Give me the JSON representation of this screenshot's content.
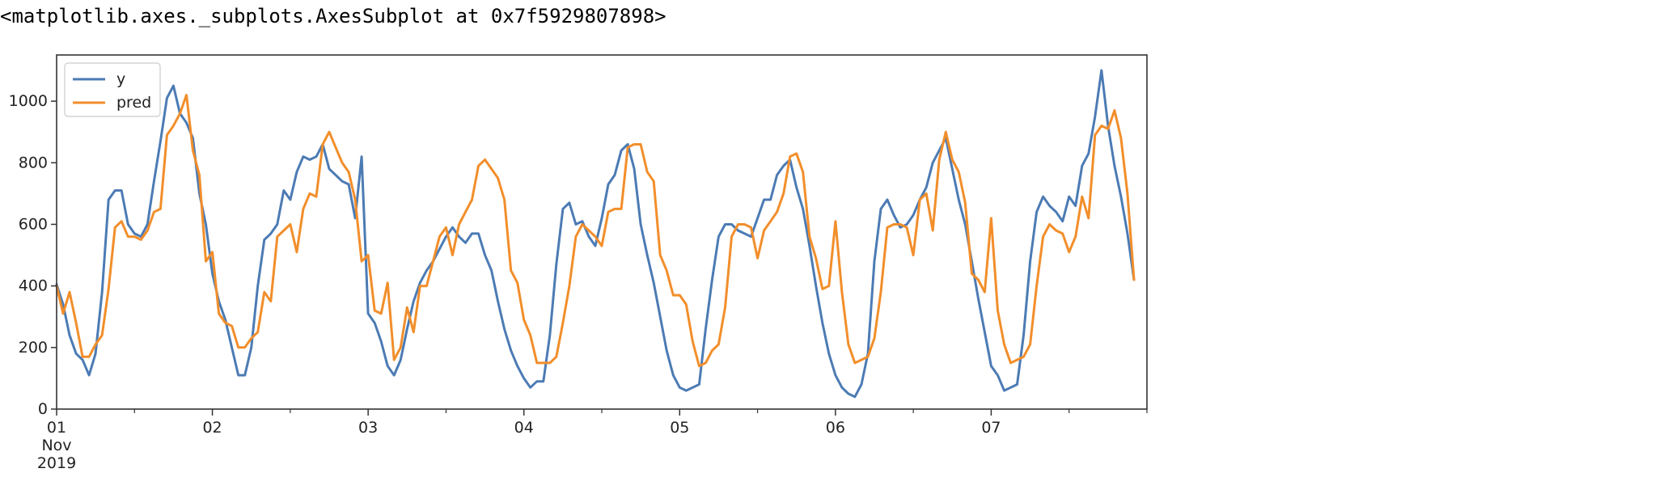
{
  "output_repr": "<matplotlib.axes._subplots.AxesSubplot at 0x7f5929807898>",
  "chart_data": {
    "type": "line",
    "title": "",
    "xlabel": "",
    "ylabel": "",
    "grid": false,
    "legend_position": "top-left",
    "x_start": "2019-11-01 00:00",
    "x_step": "1 hour",
    "xlim": [
      "2019-11-01 00:00",
      "2019-11-08 00:00"
    ],
    "ylim": [
      0,
      1150
    ],
    "y_ticks": [
      0,
      200,
      400,
      600,
      800,
      1000
    ],
    "x_ticks": [
      {
        "at": "2019-11-01",
        "lines": [
          "01",
          "Nov",
          "2019"
        ]
      },
      {
        "at": "2019-11-02",
        "lines": [
          "02"
        ]
      },
      {
        "at": "2019-11-03",
        "lines": [
          "03"
        ]
      },
      {
        "at": "2019-11-04",
        "lines": [
          "04"
        ]
      },
      {
        "at": "2019-11-05",
        "lines": [
          "05"
        ]
      },
      {
        "at": "2019-11-06",
        "lines": [
          "06"
        ]
      },
      {
        "at": "2019-11-07",
        "lines": [
          "07"
        ]
      }
    ],
    "series": [
      {
        "name": "y",
        "color": "#4c7bb4",
        "values": [
          405,
          340,
          240,
          180,
          160,
          110,
          180,
          380,
          680,
          710,
          710,
          600,
          570,
          560,
          600,
          740,
          870,
          1010,
          1050,
          960,
          930,
          880,
          700,
          600,
          440,
          350,
          290,
          200,
          110,
          110,
          200,
          400,
          550,
          570,
          600,
          710,
          680,
          770,
          820,
          810,
          820,
          860,
          780,
          760,
          740,
          730,
          620,
          820,
          310,
          280,
          220,
          140,
          110,
          160,
          260,
          350,
          410,
          450,
          480,
          520,
          560,
          590,
          560,
          540,
          570,
          570,
          500,
          450,
          350,
          260,
          190,
          140,
          100,
          70,
          90,
          90,
          240,
          470,
          650,
          670,
          600,
          610,
          560,
          530,
          620,
          730,
          760,
          840,
          860,
          780,
          600,
          500,
          410,
          300,
          190,
          110,
          70,
          60,
          70,
          80,
          260,
          420,
          560,
          600,
          600,
          580,
          570,
          560,
          620,
          680,
          680,
          760,
          790,
          810,
          720,
          650,
          530,
          400,
          280,
          180,
          110,
          70,
          50,
          40,
          80,
          180,
          480,
          650,
          680,
          630,
          590,
          600,
          630,
          680,
          720,
          800,
          840,
          880,
          780,
          680,
          600,
          480,
          360,
          250,
          140,
          110,
          60,
          70,
          80,
          240,
          480,
          640,
          690,
          660,
          640,
          610,
          690,
          660,
          790,
          830,
          950,
          1100,
          920,
          790,
          690,
          570,
          420
        ]
      },
      {
        "name": "pred",
        "color": "#f28e2b",
        "values": [
          400,
          310,
          380,
          280,
          170,
          170,
          210,
          240,
          390,
          590,
          610,
          560,
          560,
          550,
          580,
          640,
          650,
          890,
          920,
          960,
          1020,
          840,
          760,
          480,
          510,
          310,
          280,
          270,
          200,
          200,
          230,
          250,
          380,
          350,
          560,
          580,
          600,
          510,
          650,
          700,
          690,
          860,
          900,
          850,
          800,
          770,
          680,
          480,
          500,
          320,
          310,
          410,
          160,
          200,
          330,
          250,
          400,
          400,
          480,
          560,
          590,
          500,
          600,
          640,
          680,
          790,
          810,
          780,
          750,
          680,
          450,
          410,
          290,
          240,
          150,
          150,
          150,
          170,
          280,
          400,
          560,
          600,
          580,
          560,
          530,
          640,
          650,
          650,
          850,
          860,
          860,
          770,
          740,
          500,
          450,
          370,
          370,
          340,
          220,
          140,
          150,
          190,
          210,
          330,
          560,
          600,
          600,
          590,
          490,
          580,
          610,
          640,
          700,
          820,
          830,
          770,
          560,
          490,
          390,
          400,
          610,
          380,
          210,
          150,
          160,
          170,
          230,
          380,
          590,
          600,
          600,
          590,
          500,
          680,
          700,
          580,
          810,
          900,
          810,
          770,
          670,
          440,
          420,
          380,
          620,
          320,
          210,
          150,
          160,
          170,
          210,
          400,
          560,
          600,
          580,
          570,
          510,
          560,
          690,
          620,
          890,
          920,
          910,
          970,
          880,
          700,
          420
        ]
      }
    ]
  }
}
